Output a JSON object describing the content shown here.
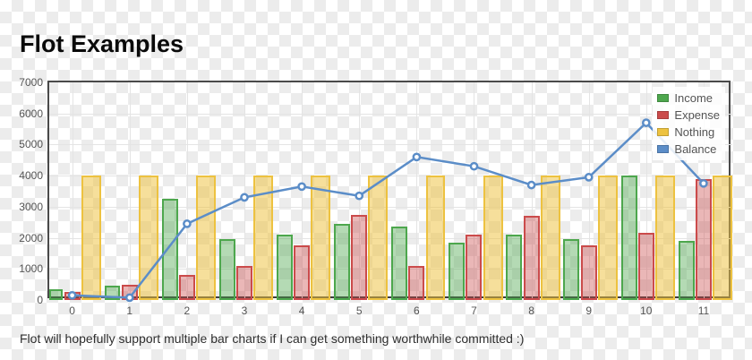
{
  "page": {
    "title": "Flot Examples",
    "caption": "Flot will hopefully support multiple bar charts if I can get something worthwhile committed :)"
  },
  "colors": {
    "income": "#4da74d",
    "income_fill": "rgba(77,167,77,0.42)",
    "expense": "#cb4b4b",
    "expense_fill": "rgba(203,75,75,0.40)",
    "nothing": "#edc240",
    "nothing_fill": "rgba(237,194,64,0.52)",
    "balance": "#5b8dc8",
    "point_fill": "#ffffff",
    "grid": "#e4e4e4",
    "axis_text": "#545454"
  },
  "chart_data": {
    "type": "bar",
    "title": "",
    "xlabel": "",
    "ylabel": "",
    "x": [
      0,
      1,
      2,
      3,
      4,
      5,
      6,
      7,
      8,
      9,
      10,
      11
    ],
    "xticks": [
      0,
      1,
      2,
      3,
      4,
      5,
      6,
      7,
      8,
      9,
      10,
      11
    ],
    "yticks": [
      0,
      1000,
      2000,
      3000,
      4000,
      5000,
      6000,
      7000
    ],
    "xlim": [
      -0.4,
      11.5
    ],
    "ylim": [
      0,
      7000
    ],
    "grid": true,
    "legend_position": "top-right",
    "series": [
      {
        "name": "Income",
        "type": "bar",
        "values": [
          350,
          450,
          3250,
          1950,
          2100,
          2450,
          2350,
          1850,
          2100,
          1950,
          4000,
          1900
        ]
      },
      {
        "name": "Expense",
        "type": "bar",
        "values": [
          250,
          500,
          820,
          1100,
          1750,
          2750,
          1100,
          2100,
          2700,
          1750,
          2150,
          3900
        ]
      },
      {
        "name": "Nothing",
        "type": "bar",
        "values": [
          4000,
          4000,
          4000,
          4000,
          4000,
          4000,
          4000,
          4000,
          4000,
          4000,
          4000,
          4000
        ]
      },
      {
        "name": "Balance",
        "type": "line",
        "values": [
          150,
          75,
          2450,
          3300,
          3650,
          3350,
          4600,
          4300,
          3700,
          3950,
          5700,
          3750
        ]
      }
    ]
  }
}
